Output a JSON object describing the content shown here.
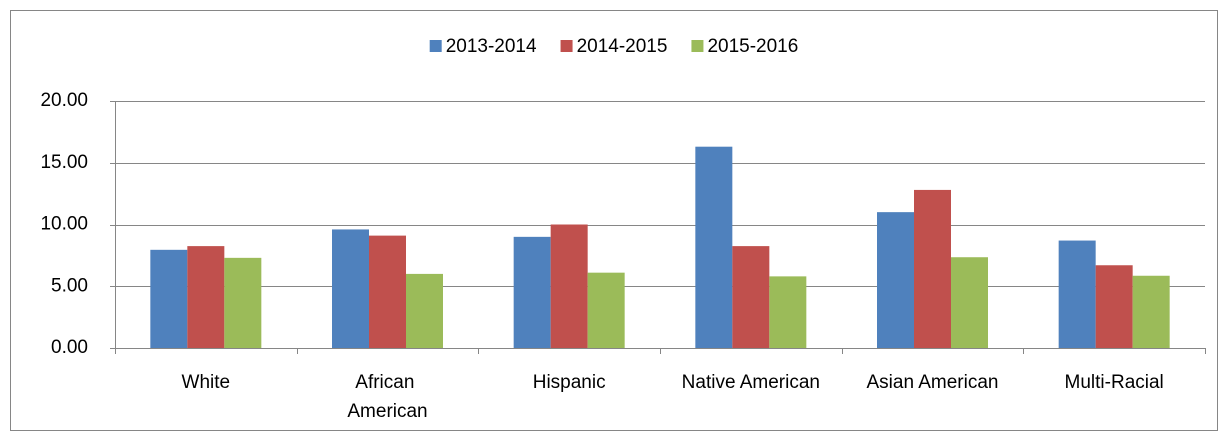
{
  "chart_data": {
    "type": "bar",
    "categories": [
      "White",
      "African American",
      "Hispanic",
      "Native American",
      "Asian American",
      "Multi-Racial"
    ],
    "series": [
      {
        "name": "2013-2014",
        "color": "#4f81bd",
        "values": [
          7.95,
          9.6,
          9.0,
          16.3,
          11.0,
          8.7
        ]
      },
      {
        "name": "2014-2015",
        "color": "#c0504d",
        "values": [
          8.25,
          9.1,
          10.0,
          8.25,
          12.8,
          6.7
        ]
      },
      {
        "name": "2015-2016",
        "color": "#9bbb59",
        "values": [
          7.3,
          6.0,
          6.1,
          5.8,
          7.35,
          5.85
        ]
      }
    ],
    "ylim": [
      0,
      20
    ],
    "yticks": [
      {
        "value": 0,
        "label": "0.00"
      },
      {
        "value": 5,
        "label": "5.00"
      },
      {
        "value": 10,
        "label": "10.00"
      },
      {
        "value": 15,
        "label": "15.00"
      },
      {
        "value": 20,
        "label": "20.00"
      }
    ],
    "grid": true,
    "legend": "top"
  }
}
